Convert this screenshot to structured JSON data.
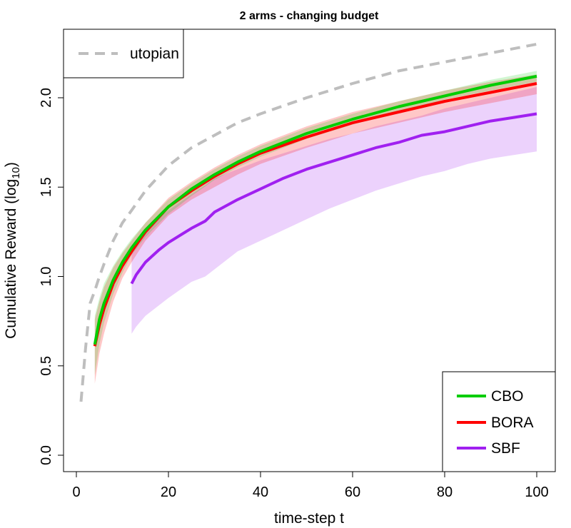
{
  "chart_data": {
    "type": "line",
    "title": "2 arms - changing budget",
    "xlabel": "time-step t",
    "ylabel_main": "Cumulative Reward (log",
    "ylabel_sub": "10",
    "ylabel_close": ")",
    "xlim": [
      0,
      100
    ],
    "ylim": [
      0,
      2.3
    ],
    "xticks": [
      0,
      20,
      40,
      60,
      80,
      100
    ],
    "yticks": [
      0.0,
      0.5,
      1.0,
      1.5,
      2.0
    ],
    "xtick_labels": [
      "0",
      "20",
      "40",
      "60",
      "80",
      "100"
    ],
    "ytick_labels": [
      "0.0",
      "0.5",
      "1.0",
      "1.5",
      "2.0"
    ],
    "grid": false,
    "legend_top_left": [
      {
        "name": "utopian",
        "color": "#bebebe",
        "dash": true
      }
    ],
    "legend_bottom_right": [
      {
        "name": "CBO",
        "color": "#00cd00"
      },
      {
        "name": "BORA",
        "color": "#ff0000"
      },
      {
        "name": "SBF",
        "color": "#a020f0"
      }
    ],
    "series": [
      {
        "name": "utopian",
        "color": "#bebebe",
        "dash": true,
        "x": [
          1,
          2,
          3,
          4,
          5,
          6,
          8,
          10,
          12,
          15,
          20,
          25,
          30,
          35,
          40,
          50,
          60,
          70,
          80,
          90,
          100
        ],
        "y": [
          0.3,
          0.6,
          0.85,
          0.92,
          1.0,
          1.07,
          1.2,
          1.3,
          1.37,
          1.48,
          1.62,
          1.72,
          1.79,
          1.86,
          1.91,
          2.0,
          2.08,
          2.15,
          2.2,
          2.25,
          2.3
        ]
      },
      {
        "name": "CBO",
        "color": "#00cd00",
        "x": [
          4,
          5,
          6,
          8,
          10,
          12,
          15,
          20,
          25,
          30,
          35,
          40,
          50,
          60,
          70,
          80,
          90,
          100
        ],
        "y": [
          0.62,
          0.76,
          0.85,
          0.98,
          1.08,
          1.16,
          1.26,
          1.39,
          1.49,
          1.57,
          1.64,
          1.7,
          1.8,
          1.88,
          1.95,
          2.01,
          2.07,
          2.12
        ],
        "band_lower": [
          0.45,
          0.62,
          0.74,
          0.9,
          1.02,
          1.12,
          1.22,
          1.35,
          1.45,
          1.54,
          1.61,
          1.67,
          1.77,
          1.85,
          1.92,
          1.99,
          2.04,
          2.09
        ],
        "band_upper": [
          0.78,
          0.88,
          0.96,
          1.06,
          1.14,
          1.21,
          1.3,
          1.43,
          1.52,
          1.6,
          1.67,
          1.73,
          1.83,
          1.91,
          1.98,
          2.04,
          2.1,
          2.15
        ]
      },
      {
        "name": "BORA",
        "color": "#ff0000",
        "x": [
          4,
          5,
          6,
          8,
          10,
          12,
          15,
          20,
          25,
          30,
          35,
          40,
          50,
          60,
          70,
          80,
          90,
          100
        ],
        "y": [
          0.61,
          0.73,
          0.82,
          0.96,
          1.06,
          1.14,
          1.25,
          1.39,
          1.48,
          1.56,
          1.63,
          1.69,
          1.78,
          1.86,
          1.92,
          1.98,
          2.03,
          2.08
        ],
        "band_lower": [
          0.4,
          0.57,
          0.68,
          0.86,
          0.99,
          1.08,
          1.2,
          1.34,
          1.43,
          1.5,
          1.57,
          1.63,
          1.72,
          1.8,
          1.86,
          1.92,
          1.97,
          2.02
        ],
        "band_upper": [
          0.76,
          0.86,
          0.94,
          1.05,
          1.13,
          1.2,
          1.3,
          1.44,
          1.53,
          1.61,
          1.68,
          1.74,
          1.84,
          1.92,
          1.98,
          2.04,
          2.09,
          2.13
        ]
      },
      {
        "name": "SBF",
        "color": "#a020f0",
        "x": [
          12,
          13,
          15,
          18,
          20,
          25,
          28,
          30,
          35,
          40,
          45,
          50,
          55,
          60,
          65,
          70,
          75,
          80,
          85,
          90,
          95,
          100
        ],
        "y": [
          0.96,
          1.01,
          1.08,
          1.15,
          1.19,
          1.27,
          1.31,
          1.36,
          1.43,
          1.49,
          1.55,
          1.6,
          1.64,
          1.68,
          1.72,
          1.75,
          1.79,
          1.81,
          1.84,
          1.87,
          1.89,
          1.91
        ],
        "band_lower": [
          0.68,
          0.72,
          0.78,
          0.84,
          0.88,
          0.97,
          1.0,
          1.04,
          1.14,
          1.2,
          1.26,
          1.32,
          1.38,
          1.43,
          1.48,
          1.52,
          1.56,
          1.59,
          1.63,
          1.66,
          1.68,
          1.7
        ],
        "band_upper": [
          1.14,
          1.18,
          1.25,
          1.33,
          1.37,
          1.46,
          1.51,
          1.55,
          1.6,
          1.65,
          1.69,
          1.73,
          1.77,
          1.8,
          1.84,
          1.87,
          1.9,
          1.94,
          1.97,
          2.0,
          2.03,
          2.06
        ]
      }
    ]
  }
}
